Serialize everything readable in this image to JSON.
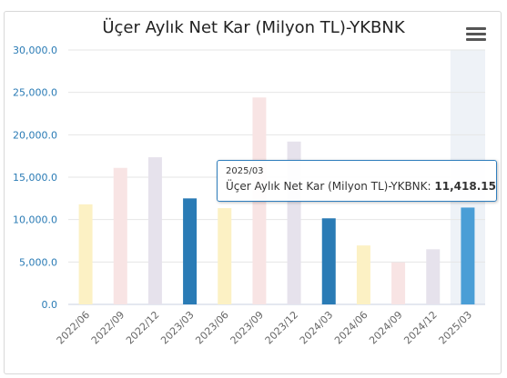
{
  "chart_data": {
    "type": "bar",
    "title": "Üçer Aylık Net Kar (Milyon TL)-YKBNK",
    "categories": [
      "2022/06",
      "2022/09",
      "2022/12",
      "2023/03",
      "2023/06",
      "2023/09",
      "2023/12",
      "2024/03",
      "2024/06",
      "2024/09",
      "2024/12",
      "2025/03"
    ],
    "series": [
      {
        "values": [
          11800,
          16100,
          17350,
          12500,
          11350,
          24400,
          19200,
          10150,
          6950,
          4950,
          6500,
          11418.15
        ]
      }
    ],
    "bar_colors": [
      "#fcf1c4",
      "#f8e4e4",
      "#e6e2ec",
      "#2a7bb5",
      "#fcf1c4",
      "#f8e4e4",
      "#e6e2ec",
      "#2a7bb5",
      "#fcf1c4",
      "#f8e4e4",
      "#e6e2ec",
      "#4a9ed6"
    ],
    "highlight_index": 11,
    "yticks": [
      "0.0",
      "5,000.0",
      "10,000.0",
      "15,000.0",
      "20,000.0",
      "25,000.0",
      "30,000.0"
    ],
    "ylim": [
      0,
      30000
    ],
    "grid": true,
    "xlabel": "",
    "ylabel": ""
  },
  "menu": {
    "icon": "hamburger-menu-icon"
  },
  "tooltip": {
    "header": "2025/03",
    "series_label": "Üçer Aylık Net Kar (Milyon TL)-YKBNK: ",
    "value": "11,418.15"
  }
}
